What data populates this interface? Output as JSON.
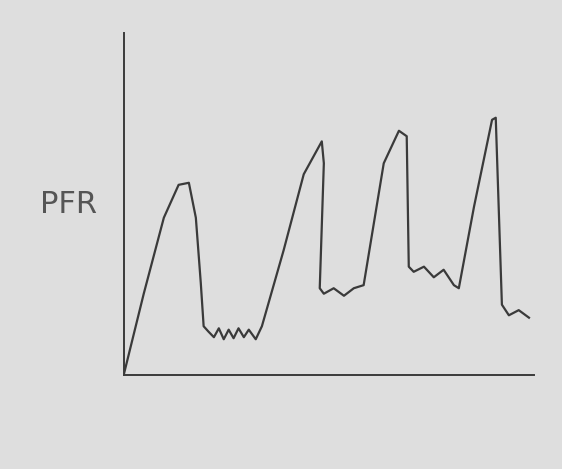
{
  "chart_data": {
    "type": "line",
    "y_label": "PFR",
    "x": [
      0,
      4.9,
      9.8,
      13.4,
      15.9,
      17.6,
      18.8,
      19.5,
      20.7,
      22.0,
      23.2,
      24.4,
      25.6,
      26.8,
      28.0,
      29.3,
      30.5,
      32.2,
      33.7,
      39.0,
      43.9,
      48.3,
      48.8,
      47.8,
      48.8,
      51.2,
      53.7,
      56.1,
      58.5,
      63.4,
      67.1,
      69.0,
      69.5,
      70.7,
      73.2,
      75.6,
      78.0,
      80.5,
      81.7,
      85.4,
      89.8,
      90.7,
      92.2,
      93.9,
      96.3,
      98.8
    ],
    "values": [
      0,
      23.8,
      46.0,
      55.6,
      56.2,
      46.0,
      27.0,
      14.3,
      12.7,
      11.1,
      13.7,
      10.5,
      13.3,
      10.8,
      13.7,
      11.1,
      13.3,
      10.5,
      14.3,
      36.5,
      58.7,
      68.3,
      61.9,
      25.4,
      23.8,
      25.4,
      23.2,
      25.4,
      26.3,
      61.9,
      71.4,
      69.8,
      31.7,
      30.2,
      31.7,
      28.6,
      30.8,
      26.3,
      25.4,
      49.2,
      74.6,
      75.2,
      20.6,
      17.5,
      19.0,
      16.8
    ],
    "color": "#3a3a3a",
    "xlim": [
      0,
      100
    ],
    "ylim": [
      0,
      100
    ],
    "tick_labels": false
  }
}
